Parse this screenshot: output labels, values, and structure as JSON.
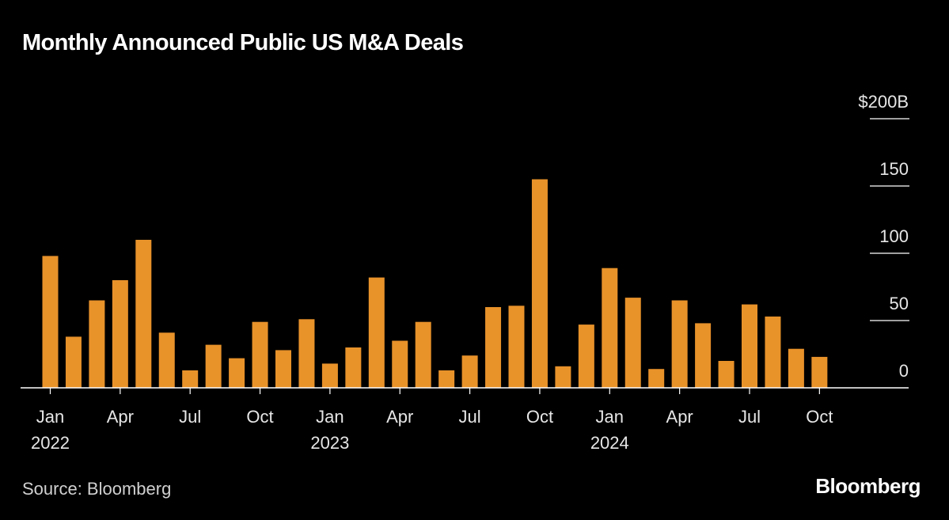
{
  "title": "Monthly Announced Public US M&A Deals",
  "source": "Source: Bloomberg",
  "brand": "Bloomberg",
  "colors": {
    "background": "#000000",
    "bar": "#E8922A",
    "text": "#ffffff",
    "grid": "#ffffff"
  },
  "chart_data": {
    "type": "bar",
    "title": "Monthly Announced Public US M&A Deals",
    "xlabel": "",
    "ylabel": "",
    "ylim": [
      0,
      200
    ],
    "grid": true,
    "y_ticks": [
      {
        "value": 0,
        "label": "0"
      },
      {
        "value": 50,
        "label": "50"
      },
      {
        "value": 100,
        "label": "100"
      },
      {
        "value": 150,
        "label": "150"
      },
      {
        "value": 200,
        "label": "$200B"
      }
    ],
    "x_ticks": [
      {
        "index": 0,
        "label": "Jan",
        "year": "2022"
      },
      {
        "index": 3,
        "label": "Apr",
        "year": ""
      },
      {
        "index": 6,
        "label": "Jul",
        "year": ""
      },
      {
        "index": 9,
        "label": "Oct",
        "year": ""
      },
      {
        "index": 12,
        "label": "Jan",
        "year": "2023"
      },
      {
        "index": 15,
        "label": "Apr",
        "year": ""
      },
      {
        "index": 18,
        "label": "Jul",
        "year": ""
      },
      {
        "index": 21,
        "label": "Oct",
        "year": ""
      },
      {
        "index": 24,
        "label": "Jan",
        "year": "2024"
      },
      {
        "index": 27,
        "label": "Apr",
        "year": ""
      },
      {
        "index": 30,
        "label": "Jul",
        "year": ""
      },
      {
        "index": 33,
        "label": "Oct",
        "year": ""
      }
    ],
    "categories": [
      "Jan 2022",
      "Feb 2022",
      "Mar 2022",
      "Apr 2022",
      "May 2022",
      "Jun 2022",
      "Jul 2022",
      "Aug 2022",
      "Sep 2022",
      "Oct 2022",
      "Nov 2022",
      "Dec 2022",
      "Jan 2023",
      "Feb 2023",
      "Mar 2023",
      "Apr 2023",
      "May 2023",
      "Jun 2023",
      "Jul 2023",
      "Aug 2023",
      "Sep 2023",
      "Oct 2023",
      "Nov 2023",
      "Dec 2023",
      "Jan 2024",
      "Feb 2024",
      "Mar 2024",
      "Apr 2024",
      "May 2024",
      "Jun 2024",
      "Jul 2024",
      "Aug 2024",
      "Sep 2024",
      "Oct 2024"
    ],
    "values": [
      98,
      38,
      65,
      80,
      110,
      41,
      13,
      32,
      22,
      49,
      28,
      51,
      18,
      30,
      82,
      35,
      49,
      13,
      24,
      60,
      61,
      155,
      16,
      47,
      89,
      67,
      14,
      65,
      48,
      20,
      62,
      53,
      29,
      23
    ]
  }
}
